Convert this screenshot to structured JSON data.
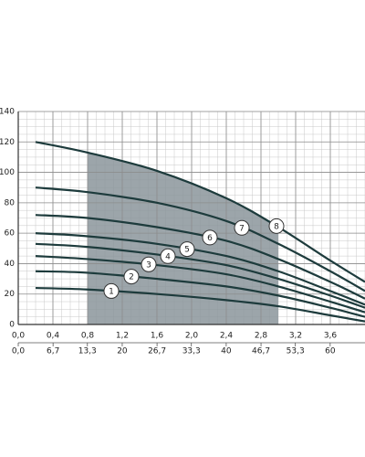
{
  "chart_data": {
    "type": "line",
    "x": [
      0.2,
      0.8,
      1.6,
      2.4,
      3.0,
      3.6,
      4.0
    ],
    "series": [
      {
        "name": "1",
        "color": "#1d3b3c",
        "values": [
          24,
          23,
          20,
          16,
          12,
          6,
          2
        ]
      },
      {
        "name": "2",
        "color": "#1d3b3c",
        "values": [
          35,
          34,
          30,
          25,
          19,
          11,
          5
        ]
      },
      {
        "name": "3",
        "color": "#1d3b3c",
        "values": [
          45,
          43,
          39,
          33,
          25,
          15,
          8
        ]
      },
      {
        "name": "4",
        "color": "#1d3b3c",
        "values": [
          53,
          51,
          46,
          39,
          30,
          19,
          11
        ]
      },
      {
        "name": "5",
        "color": "#1d3b3c",
        "values": [
          60,
          58,
          53,
          45,
          35,
          22,
          13
        ]
      },
      {
        "name": "6",
        "color": "#1d3b3c",
        "values": [
          72,
          70,
          64,
          55,
          43,
          28,
          17
        ]
      },
      {
        "name": "7",
        "color": "#1d3b3c",
        "values": [
          90,
          87,
          80,
          68,
          53,
          35,
          22
        ]
      },
      {
        "name": "8",
        "color": "#1d3b3c",
        "values": [
          120,
          113,
          101,
          83,
          64,
          42,
          28
        ]
      }
    ],
    "xlim": [
      0,
      4
    ],
    "xticks": [
      {
        "value": 0,
        "label": "0,0"
      },
      {
        "value": 0.4,
        "label": "0,4"
      },
      {
        "value": 0.8,
        "label": "0,8"
      },
      {
        "value": 1.2,
        "label": "1,2"
      },
      {
        "value": 1.6,
        "label": "1,6"
      },
      {
        "value": 2.0,
        "label": "2,0"
      },
      {
        "value": 2.4,
        "label": "2,4"
      },
      {
        "value": 2.8,
        "label": "2,8"
      },
      {
        "value": 3.2,
        "label": "3,2"
      },
      {
        "value": 3.6,
        "label": "3,6"
      }
    ],
    "x2lim": [
      0,
      66.7
    ],
    "x2ticks": [
      {
        "value": 0,
        "label": "0,0"
      },
      {
        "value": 6.7,
        "label": "6,7"
      },
      {
        "value": 13.3,
        "label": "13,3"
      },
      20,
      {
        "value": 26.7,
        "label": "26,7"
      },
      {
        "value": 33.3,
        "label": "33,3"
      },
      40,
      {
        "value": 46.7,
        "label": "46,7"
      },
      {
        "value": 53.3,
        "label": "53,3"
      },
      60
    ],
    "ylim": [
      0,
      140
    ],
    "yticks": [
      0,
      20,
      40,
      60,
      80,
      100,
      120,
      140
    ],
    "grid": true,
    "shaded_range": [
      0.8,
      3.0
    ],
    "shade_color": "#8b959b"
  }
}
